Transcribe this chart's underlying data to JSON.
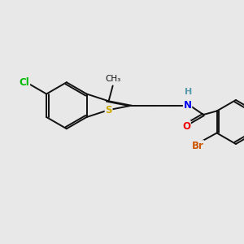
{
  "bg_color": "#e8e8e8",
  "bond_color": "#111111",
  "bond_lw": 1.4,
  "atom_colors": {
    "S": "#ccaa00",
    "Cl": "#00bb00",
    "N": "#0000ee",
    "O": "#ee0000",
    "Br": "#cc5500",
    "H": "#5599aa",
    "C": "#111111"
  },
  "font_size": 8.5,
  "small_font": 7.5
}
